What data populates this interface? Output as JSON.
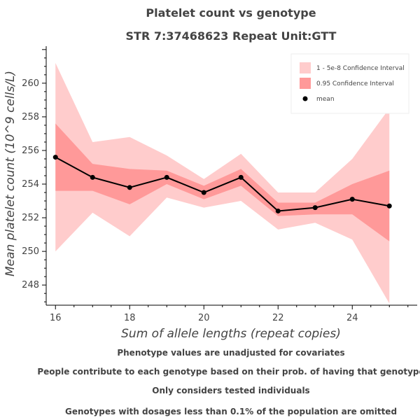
{
  "chart_data": {
    "type": "line",
    "title": "Platelet count vs genotype",
    "subtitle": "STR 7:37468623 Repeat Unit:GTT",
    "xlabel": "Sum of allele lengths (repeat copies)",
    "ylabel": "Mean platelet count (10^9 cells/L)",
    "xlim": [
      15.75,
      25.75
    ],
    "ylim": [
      246.8,
      262.2
    ],
    "xticks": [
      16,
      18,
      20,
      22,
      24
    ],
    "yticks": [
      248,
      250,
      252,
      254,
      256,
      258,
      260
    ],
    "x": [
      16,
      17,
      18,
      19,
      20,
      21,
      22,
      23,
      24,
      25
    ],
    "series": [
      {
        "name": "mean",
        "kind": "line-with-markers",
        "color": "#000000",
        "values": [
          255.6,
          254.4,
          253.8,
          254.4,
          253.5,
          254.4,
          252.4,
          252.6,
          253.1,
          252.7
        ]
      }
    ],
    "bands": [
      {
        "name": "1 - 5e-8 Confidence Interval",
        "color": "#ffcccc",
        "lower": [
          250.0,
          252.3,
          250.9,
          253.2,
          252.6,
          253.0,
          251.3,
          251.7,
          250.7,
          246.9
        ],
        "upper": [
          261.2,
          256.5,
          256.8,
          255.7,
          254.3,
          255.8,
          253.5,
          253.5,
          255.5,
          258.5
        ]
      },
      {
        "name": "0.95 Confidence Interval",
        "color": "#ff9999",
        "lower": [
          253.6,
          253.6,
          252.8,
          254.0,
          253.1,
          253.9,
          252.1,
          252.2,
          252.2,
          250.6
        ],
        "upper": [
          257.6,
          255.2,
          254.9,
          254.8,
          253.9,
          254.9,
          252.9,
          252.9,
          254.0,
          254.8
        ]
      }
    ],
    "legend": {
      "placement": "top-right",
      "entries": [
        {
          "label": "1 - 5e-8 Confidence Interval",
          "color": "#ffcccc",
          "shape": "square"
        },
        {
          "label": "0.95 Confidence Interval",
          "color": "#ff9999",
          "shape": "square"
        },
        {
          "label": "mean",
          "color": "#000000",
          "shape": "circle"
        }
      ]
    },
    "grid": false
  },
  "footnotes": [
    "Phenotype values are unadjusted for covariates",
    "People contribute to each genotype based on their prob. of having that genotype",
    "Only considers tested individuals",
    "Genotypes with dosages less than 0.1% of the population are omitted"
  ]
}
